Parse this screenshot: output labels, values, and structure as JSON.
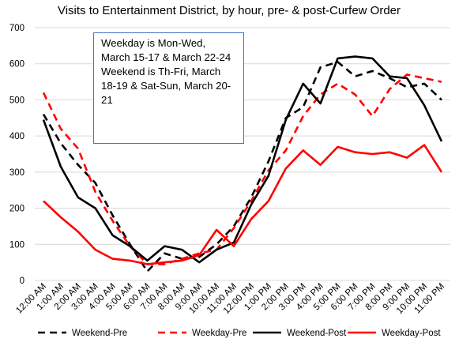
{
  "chart_data": {
    "type": "line",
    "title": "Visits to Entertainment District, by hour, pre- & post-Curfew Order",
    "xlabel": "",
    "ylabel": "",
    "ylim": [
      0,
      700
    ],
    "yticks": [
      0,
      100,
      200,
      300,
      400,
      500,
      600,
      700
    ],
    "grid": true,
    "legend_position": "bottom",
    "categories": [
      "12:00 AM",
      "1:00 AM",
      "2:00 AM",
      "3:00 AM",
      "4:00 AM",
      "5:00 AM",
      "6:00 AM",
      "7:00 AM",
      "8:00 AM",
      "9:00 AM",
      "10:00 AM",
      "11:00 AM",
      "12:00 PM",
      "1:00 PM",
      "2:00 PM",
      "3:00 PM",
      "4:00 PM",
      "5:00 PM",
      "6:00 PM",
      "7:00 PM",
      "8:00 PM",
      "9:00 PM",
      "10:00 PM",
      "11:00 PM"
    ],
    "series": [
      {
        "name": "Weekend-Pre",
        "color": "#000000",
        "dashed": true,
        "values": [
          460,
          380,
          320,
          270,
          180,
          100,
          25,
          75,
          60,
          65,
          100,
          150,
          230,
          330,
          450,
          480,
          590,
          605,
          565,
          580,
          560,
          535,
          545,
          500
        ]
      },
      {
        "name": "Weekday-Pre",
        "color": "#ff0000",
        "dashed": true,
        "values": [
          520,
          420,
          365,
          245,
          165,
          95,
          45,
          45,
          60,
          75,
          85,
          145,
          220,
          305,
          360,
          455,
          515,
          545,
          515,
          455,
          530,
          570,
          560,
          550
        ]
      },
      {
        "name": "Weekend-Post",
        "color": "#000000",
        "dashed": false,
        "values": [
          445,
          315,
          230,
          200,
          125,
          95,
          55,
          95,
          85,
          50,
          85,
          105,
          210,
          290,
          445,
          545,
          490,
          615,
          620,
          615,
          565,
          560,
          485,
          385
        ]
      },
      {
        "name": "Weekday-Post",
        "color": "#ff0000",
        "dashed": false,
        "values": [
          220,
          175,
          135,
          85,
          60,
          55,
          45,
          50,
          55,
          70,
          140,
          95,
          170,
          220,
          310,
          360,
          320,
          370,
          355,
          350,
          355,
          340,
          375,
          300
        ]
      }
    ],
    "annotation": "Weekday is Mon-Wed,\nMarch 15-17 & March 22-24\nWeekend is Th-Fri, March\n18-19 & Sat-Sun, March 20-\n21"
  }
}
